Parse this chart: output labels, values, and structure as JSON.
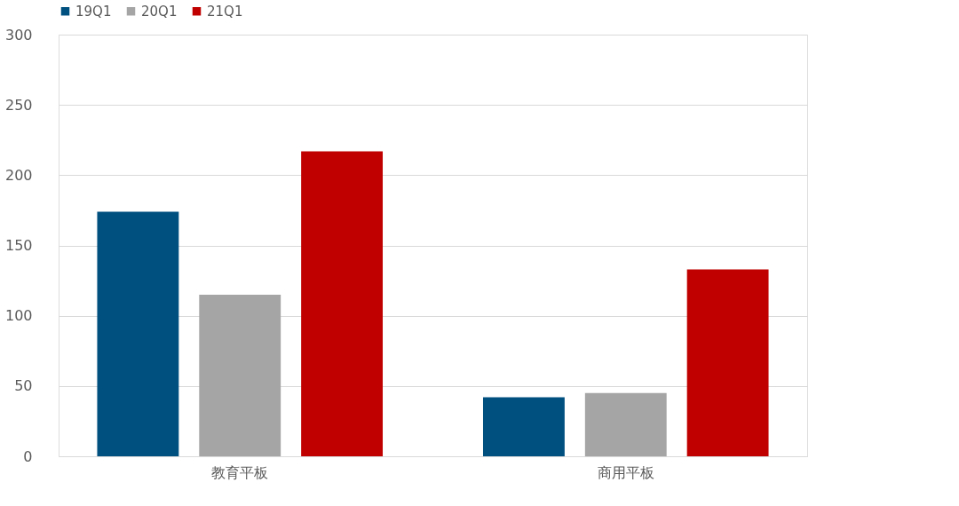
{
  "chart_data": {
    "type": "bar",
    "categories": [
      "教育平板",
      "商用平板"
    ],
    "series": [
      {
        "name": "19Q1",
        "color": "#00507f",
        "values": [
          174,
          42
        ]
      },
      {
        "name": "20Q1",
        "color": "#a5a5a5",
        "values": [
          115,
          45
        ]
      },
      {
        "name": "21Q1",
        "color": "#c00000",
        "values": [
          217,
          133
        ]
      }
    ],
    "ylim": [
      0,
      300
    ],
    "yticks": [
      0,
      50,
      100,
      150,
      200,
      250,
      300
    ],
    "grid": "y",
    "legend": "top"
  }
}
